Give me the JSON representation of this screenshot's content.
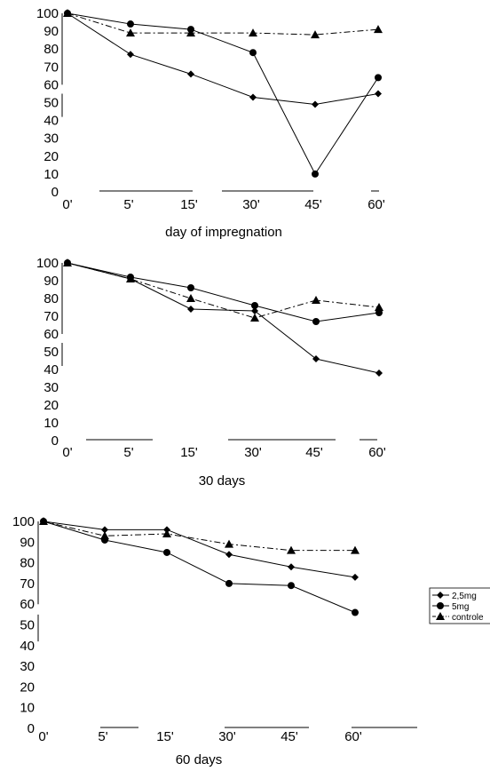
{
  "colors": {
    "ink": "#000000",
    "background": "#ffffff"
  },
  "legend": {
    "placement": "right",
    "entries": [
      {
        "label": "2,5mg",
        "marker": "diamond",
        "dash": "solid"
      },
      {
        "label": "5mg",
        "marker": "circle",
        "dash": "solid"
      },
      {
        "label": "controle",
        "marker": "triangle",
        "dash": "dashdot"
      }
    ]
  },
  "chart_data": [
    {
      "type": "line",
      "title": "",
      "xlabel": "day of impregnation",
      "ylabel": "",
      "categories": [
        "0'",
        "5'",
        "15'",
        "30'",
        "45'",
        "60'"
      ],
      "yticks": [
        "0",
        "10",
        "20",
        "30",
        "40",
        "50",
        "60",
        "70",
        "80",
        "90",
        "100"
      ],
      "ylim": [
        0,
        100
      ],
      "grid": false,
      "series": [
        {
          "name": "2,5mg",
          "marker": "diamond",
          "values": [
            100,
            77,
            66,
            53,
            49,
            55
          ]
        },
        {
          "name": "5mg",
          "marker": "circle",
          "values": [
            100,
            94,
            91,
            78,
            10,
            64
          ]
        },
        {
          "name": "controle",
          "marker": "triangle",
          "values": [
            100,
            89,
            89,
            89,
            88,
            91
          ]
        }
      ]
    },
    {
      "type": "line",
      "title": "",
      "xlabel": "30 days",
      "ylabel": "",
      "categories": [
        "0'",
        "5'",
        "15'",
        "30'",
        "45'",
        "60'"
      ],
      "yticks": [
        "0",
        "10",
        "20",
        "30",
        "40",
        "50",
        "60",
        "70",
        "80",
        "90",
        "100"
      ],
      "ylim": [
        0,
        100
      ],
      "grid": false,
      "series": [
        {
          "name": "2,5mg",
          "marker": "diamond",
          "values": [
            100,
            91,
            74,
            73,
            46,
            38
          ]
        },
        {
          "name": "5mg",
          "marker": "circle",
          "values": [
            100,
            92,
            86,
            76,
            67,
            72
          ]
        },
        {
          "name": "controle",
          "marker": "triangle",
          "values": [
            100,
            91,
            80,
            69,
            79,
            75
          ]
        }
      ]
    },
    {
      "type": "line",
      "title": "",
      "xlabel": "60 days",
      "ylabel": "",
      "categories": [
        "0'",
        "5'",
        "15'",
        "30'",
        "45'",
        "60'"
      ],
      "yticks": [
        "0",
        "10",
        "20",
        "30",
        "40",
        "50",
        "60",
        "70",
        "80",
        "90",
        "100"
      ],
      "ylim": [
        0,
        100
      ],
      "grid": false,
      "series": [
        {
          "name": "2,5mg",
          "marker": "diamond",
          "values": [
            100,
            96,
            96,
            84,
            78,
            73
          ]
        },
        {
          "name": "5mg",
          "marker": "circle",
          "values": [
            100,
            91,
            85,
            70,
            69,
            56
          ]
        },
        {
          "name": "controle",
          "marker": "triangle",
          "values": [
            100,
            93,
            94,
            89,
            86,
            86
          ]
        }
      ]
    }
  ]
}
